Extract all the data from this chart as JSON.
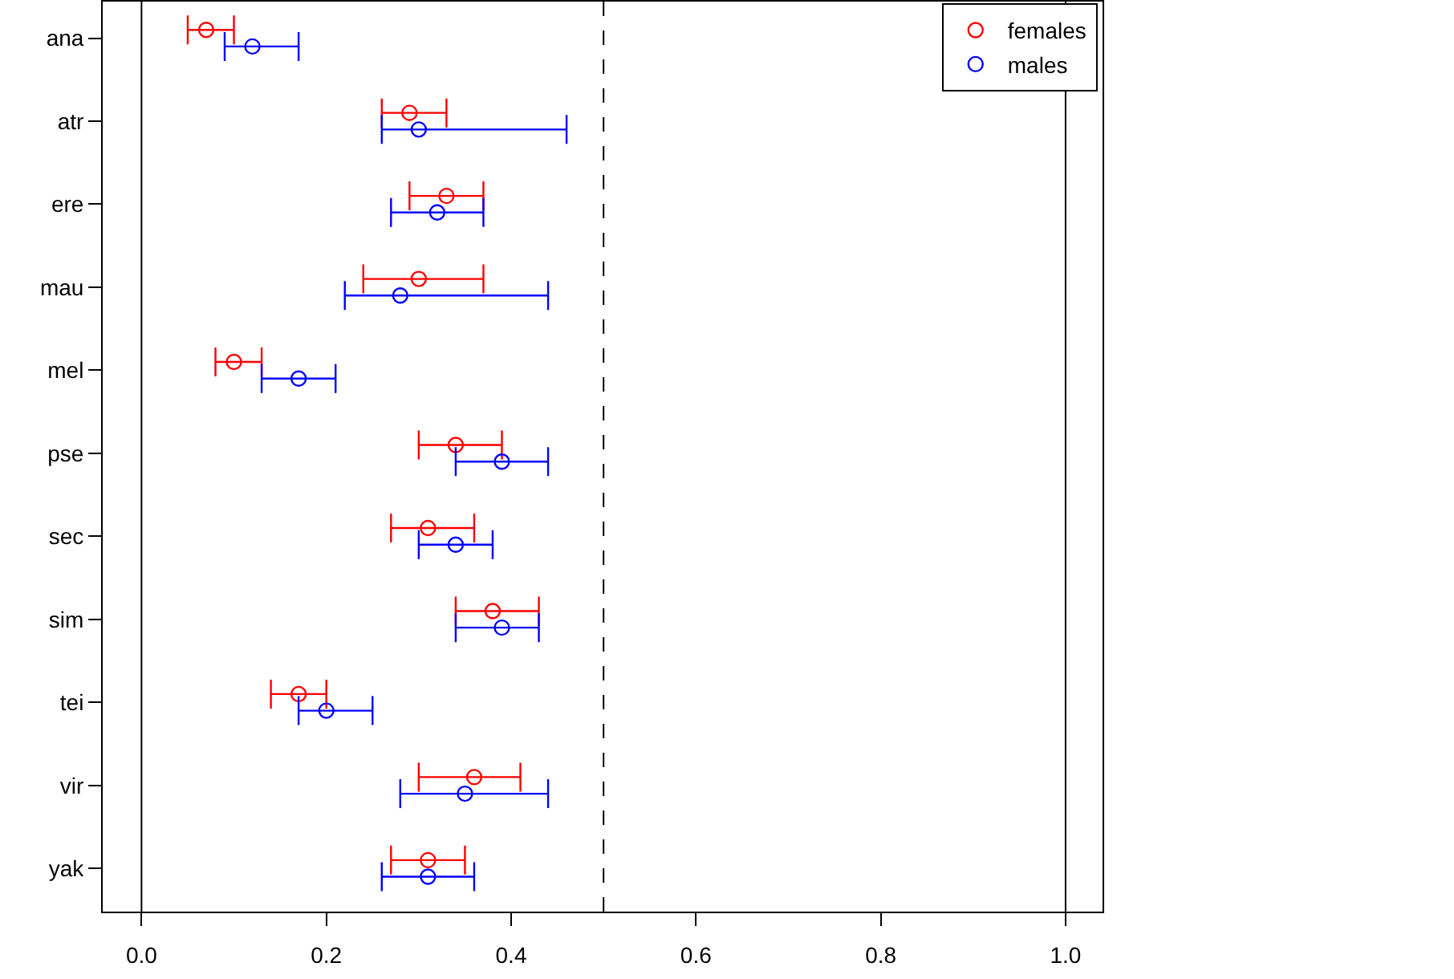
{
  "chart_data": {
    "type": "scatter",
    "orientation": "horizontal",
    "categories": [
      "ana",
      "atr",
      "ere",
      "mau",
      "mel",
      "pse",
      "sec",
      "sim",
      "tei",
      "vir",
      "yak"
    ],
    "series": [
      {
        "name": "females",
        "color": "#ff0000",
        "values": [
          0.07,
          0.29,
          0.33,
          0.3,
          0.1,
          0.34,
          0.31,
          0.38,
          0.17,
          0.36,
          0.31
        ],
        "errors": [
          [
            0.05,
            0.1
          ],
          [
            0.26,
            0.33
          ],
          [
            0.29,
            0.37
          ],
          [
            0.24,
            0.37
          ],
          [
            0.08,
            0.13
          ],
          [
            0.3,
            0.39
          ],
          [
            0.27,
            0.36
          ],
          [
            0.34,
            0.43
          ],
          [
            0.14,
            0.2
          ],
          [
            0.3,
            0.41
          ],
          [
            0.27,
            0.35
          ]
        ]
      },
      {
        "name": "males",
        "color": "#0000ff",
        "values": [
          0.12,
          0.3,
          0.32,
          0.28,
          0.17,
          0.39,
          0.34,
          0.39,
          0.2,
          0.35,
          0.31
        ],
        "errors": [
          [
            0.09,
            0.17
          ],
          [
            0.26,
            0.46
          ],
          [
            0.27,
            0.37
          ],
          [
            0.22,
            0.44
          ],
          [
            0.13,
            0.21
          ],
          [
            0.34,
            0.44
          ],
          [
            0.3,
            0.38
          ],
          [
            0.34,
            0.43
          ],
          [
            0.17,
            0.25
          ],
          [
            0.28,
            0.44
          ],
          [
            0.26,
            0.36
          ]
        ]
      }
    ],
    "xlim": [
      -0.042,
      1.04
    ],
    "xticks": [
      {
        "value": 0,
        "label": "0.0"
      },
      0.2,
      0.4,
      0.6,
      0.8,
      {
        "value": 1,
        "label": "1.0"
      }
    ],
    "ref_lines": [
      {
        "axis": "x",
        "value": 0,
        "line_style": "solid"
      },
      {
        "axis": "x",
        "value": 0.5,
        "line_style": "dashed"
      },
      {
        "axis": "x",
        "value": 1,
        "line_style": "solid"
      }
    ],
    "marker": "circle",
    "legend": "top right",
    "grid": false
  }
}
